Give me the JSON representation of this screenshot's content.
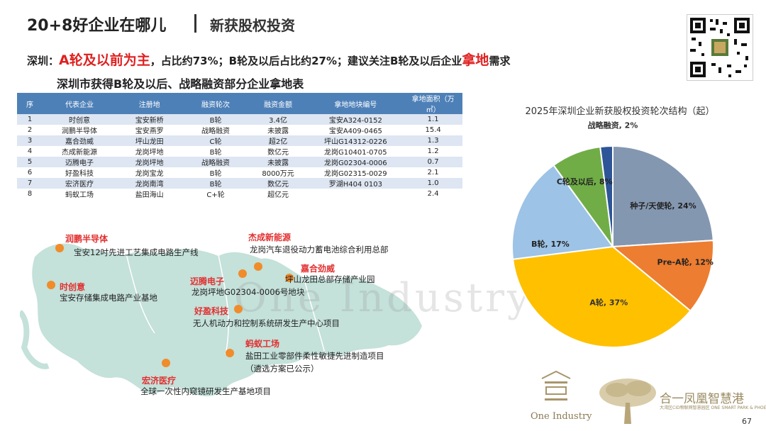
{
  "header": {
    "title": "20+8好企业在哪儿",
    "subtitle": "新获股权投资"
  },
  "summary": {
    "prefix": "深圳：",
    "highlight": "A轮及以前为主",
    "middle": "，占比约73%；B轮及以后占比约27%；建议关注B轮及以后企业",
    "highlight2": "拿地",
    "suffix": "需求"
  },
  "table": {
    "title": "深圳市获得B轮及以后、战略融资部分企业拿地表",
    "headers": [
      "序",
      "代表企业",
      "注册地",
      "融资轮次",
      "融资金额",
      "拿地地块编号",
      "拿地面积（万㎡）"
    ],
    "rows": [
      [
        "1",
        "时创意",
        "宝安新桥",
        "B轮",
        "3.4亿",
        "宝安A324-0152",
        "1.1"
      ],
      [
        "2",
        "润鹏半导体",
        "宝安燕罗",
        "战略融资",
        "未披露",
        "宝安A409-0465",
        "15.4"
      ],
      [
        "3",
        "嘉合劲威",
        "坪山龙田",
        "C轮",
        "超2亿",
        "坪山G14312-0226",
        "1.3"
      ],
      [
        "4",
        "杰成新能源",
        "龙岗坪地",
        "B轮",
        "数亿元",
        "龙岗G10401-0705",
        "1.2"
      ],
      [
        "5",
        "迈腾电子",
        "龙岗坪地",
        "战略融资",
        "未披露",
        "龙岗G02304-0006",
        "0.7"
      ],
      [
        "6",
        "好盈科技",
        "龙岗宝龙",
        "B轮",
        "8000万元",
        "龙岗G02315-0029",
        "2.1"
      ],
      [
        "7",
        "宏济医疗",
        "龙岗南湾",
        "B轮",
        "数亿元",
        "罗湖H404 0103",
        "1.0"
      ],
      [
        "8",
        "蚂蚁工场",
        "盐田海山",
        "C+轮",
        "超亿元",
        "",
        "2.4"
      ]
    ]
  },
  "map": {
    "markers": [
      {
        "name": "润鹏半导体",
        "desc": "宝安12吋先进工艺集成电路生产线"
      },
      {
        "name": "杰成新能源",
        "desc": "龙岗汽车退役动力蓄电池综合利用总部"
      },
      {
        "name": "时创意",
        "desc": "宝安存储集成电路产业基地"
      },
      {
        "name": "迈腾电子",
        "desc": "龙岗坪地G02304-0006号地块"
      },
      {
        "name": "嘉合劲威",
        "desc": "坪山龙田总部存储产业园"
      },
      {
        "name": "好盈科技",
        "desc": "无人机动力和控制系统研发生产中心项目"
      },
      {
        "name": "蚂蚁工场",
        "desc": "盐田工业零部件柔性敏捷先进制造项目"
      },
      {
        "name": "宏济医疗",
        "desc": "全球一次性内窥镜研发生产基地项目"
      }
    ],
    "note": "（遴选方案已公示）"
  },
  "chart_data": {
    "type": "pie",
    "title": "2025年深圳企业新获股权投资轮次结构（起）",
    "slices": [
      {
        "label": "种子/天使轮, 24%",
        "value": 24,
        "color": "#8497b0"
      },
      {
        "label": "Pre-A轮, 12%",
        "value": 12,
        "color": "#ed7d31"
      },
      {
        "label": "A轮, 37%",
        "value": 37,
        "color": "#ffc000"
      },
      {
        "label": "B轮, 17%",
        "value": 17,
        "color": "#9dc3e6"
      },
      {
        "label": "C轮及以后, 8%",
        "value": 8,
        "color": "#70ad47"
      },
      {
        "label": "战略融资, 2%",
        "value": 2,
        "color": "#2e5597"
      }
    ]
  },
  "watermark": "One Industry",
  "brand": {
    "logo_text": "One Industry",
    "name": "合一凤凰智慧港",
    "sub": "大湾区CID物联网智慧园区 ONE SMART PARK & PHOENIX"
  },
  "page": {
    "number": "67"
  }
}
